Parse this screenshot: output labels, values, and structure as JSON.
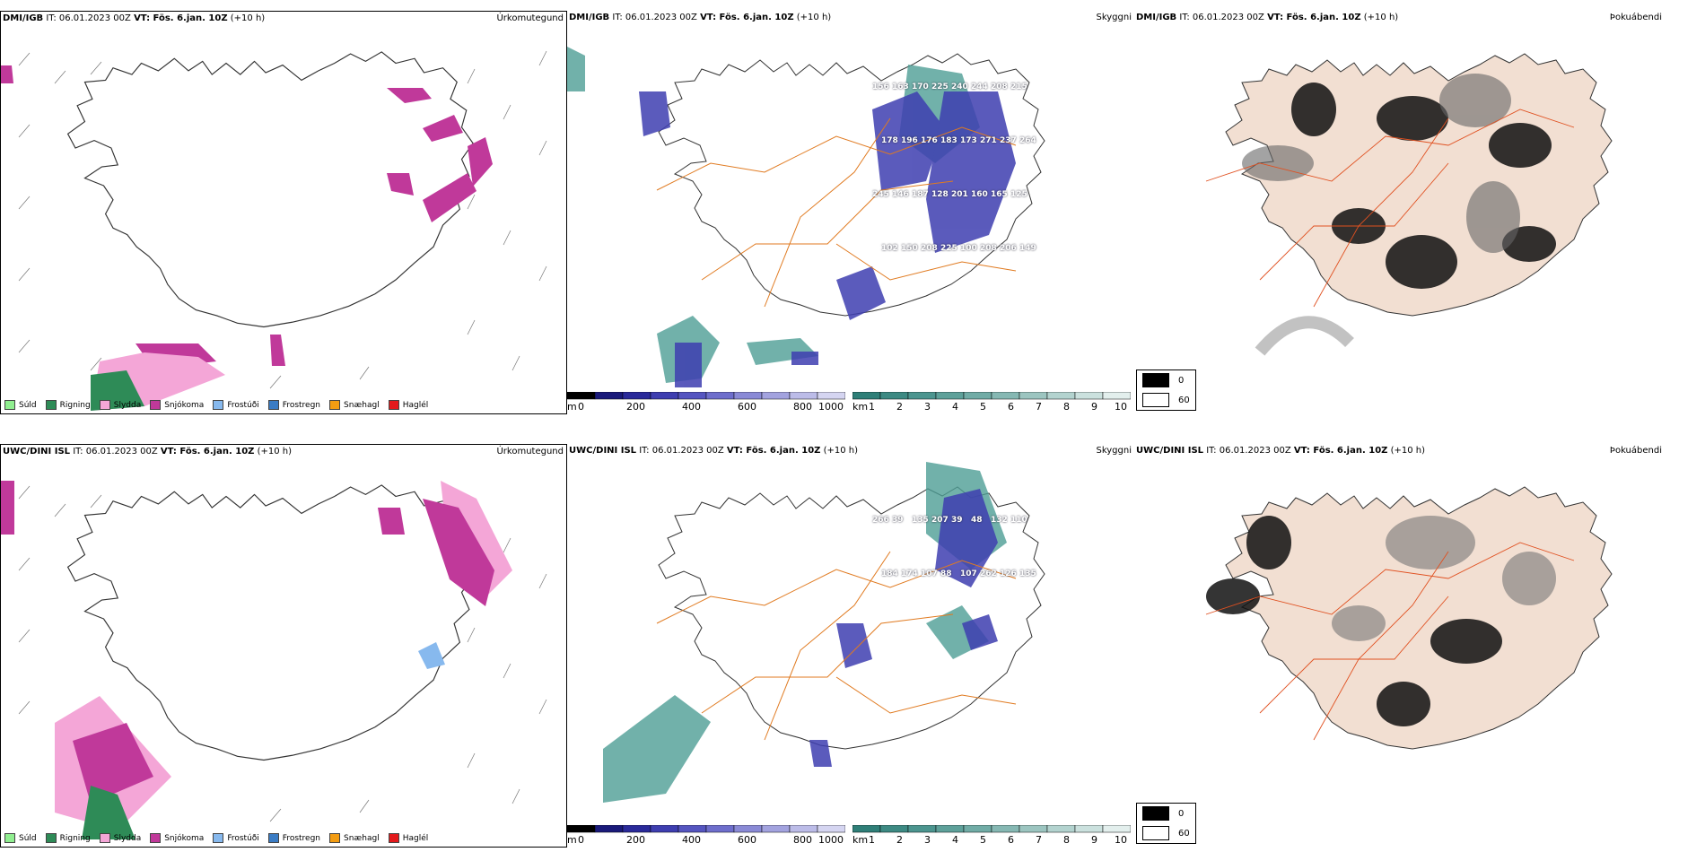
{
  "rows": [
    {
      "model": "DMI/IGB",
      "header_rest": " IT: 06.01.2023 00Z ",
      "vt": "VT: Fös. 6.jan. 10Z",
      "lead": " (+10 h)",
      "precip_title": "Úrkomutegund",
      "cloud_title": "Skyggni",
      "fog_title": "Þokuábendi",
      "snow_labels": [
        "156",
        "163",
        "170",
        "225",
        "240",
        "244",
        "208",
        "215",
        "178",
        "196",
        "176",
        "183",
        "173",
        "271",
        "237",
        "264",
        "245",
        "146",
        "187",
        "128",
        "201",
        "160",
        "165",
        "125",
        "102",
        "150",
        "208",
        "225",
        "100",
        "208",
        "206",
        "149"
      ]
    },
    {
      "model": "UWC/DINI ISL",
      "header_rest": " IT: 06.01.2023 00Z ",
      "vt": "VT: Fös. 6.jan. 10Z",
      "lead": " (+10 h)",
      "precip_title": "Úrkomutegund",
      "cloud_title": "Skyggni",
      "fog_title": "Þokuábendi",
      "snow_labels": [
        "266",
        "39",
        "135",
        "207",
        "39",
        "48",
        "132",
        "110",
        "184",
        "174",
        "107",
        "88",
        "107",
        "262",
        "126",
        "135"
      ]
    }
  ],
  "precip_legend": [
    {
      "label": "Súld",
      "color": "#90ee90"
    },
    {
      "label": "Rigning",
      "color": "#2e8b57"
    },
    {
      "label": "Slydda",
      "color": "#f4a6d7"
    },
    {
      "label": "Snjókoma",
      "color": "#c0399a"
    },
    {
      "label": "Frostúði",
      "color": "#87b9ee"
    },
    {
      "label": "Frostregn",
      "color": "#3b7cc4"
    },
    {
      "label": "Snæhagl",
      "color": "#f39c12"
    },
    {
      "label": "Haglél",
      "color": "#e31a1c"
    }
  ],
  "height_bar": {
    "unit": "m",
    "ticks": [
      "0",
      "200",
      "400",
      "600",
      "800",
      "1000"
    ],
    "colors": [
      "#000000",
      "#1a1a7a",
      "#2a2a9a",
      "#3e3eb0",
      "#5555c0",
      "#6e6ecc",
      "#8a8ad6",
      "#a3a3df",
      "#bcbce8",
      "#d5d5f1"
    ]
  },
  "vis_bar": {
    "unit": "km",
    "ticks": [
      "1",
      "2",
      "3",
      "4",
      "5",
      "6",
      "7",
      "8",
      "9",
      "10"
    ],
    "colors": [
      "#2f7f78",
      "#3d8a83",
      "#4c958f",
      "#5ea19a",
      "#71aca6",
      "#86b8b3",
      "#9cc5c0",
      "#b3d3cf",
      "#cbe1de",
      "#e3efed"
    ]
  },
  "fog_legend": [
    {
      "label": "0",
      "color": "#000000"
    },
    {
      "label": "60",
      "color": "#ffffff"
    }
  ]
}
